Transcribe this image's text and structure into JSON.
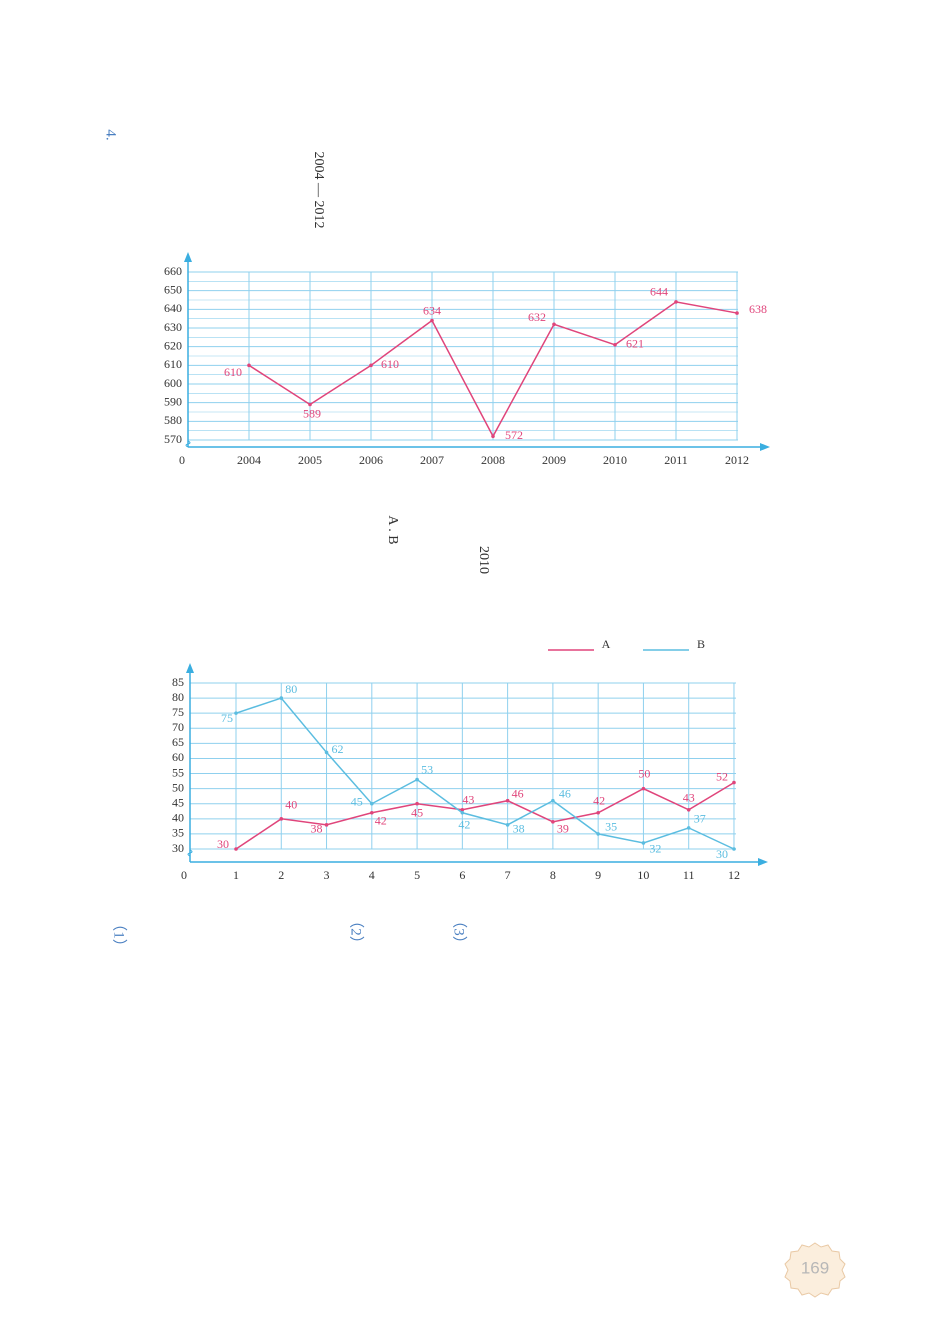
{
  "page": {
    "problem_number": "4.",
    "year_range": "2004 — 2012",
    "sub_items": [
      "（1）",
      "（2）",
      "（3）"
    ],
    "inline_a_b": "A . B",
    "inline_year": "2010",
    "page_number": "169"
  },
  "chart_data": [
    {
      "type": "line",
      "origin_label": "0",
      "categories": [
        "2004",
        "2005",
        "2006",
        "2007",
        "2008",
        "2009",
        "2010",
        "2011",
        "2012"
      ],
      "series": [
        {
          "color": "#e0457b",
          "values": [
            610,
            589,
            610,
            634,
            572,
            632,
            621,
            644,
            638
          ]
        }
      ],
      "ylim": [
        570,
        660
      ],
      "yticks": [
        570,
        580,
        590,
        600,
        610,
        620,
        630,
        640,
        650,
        660
      ],
      "grid": true
    },
    {
      "type": "line",
      "origin_label": "0",
      "categories": [
        "1",
        "2",
        "3",
        "4",
        "5",
        "6",
        "7",
        "8",
        "9",
        "10",
        "11",
        "12"
      ],
      "series": [
        {
          "name": "A",
          "color": "#e0457b",
          "values": [
            30,
            40,
            38,
            42,
            45,
            43,
            46,
            39,
            42,
            50,
            43,
            52
          ]
        },
        {
          "name": "B",
          "color": "#5bbde0",
          "values": [
            75,
            80,
            62,
            45,
            53,
            42,
            38,
            46,
            35,
            32,
            37,
            30
          ]
        }
      ],
      "ylim": [
        30,
        85
      ],
      "yticks": [
        30,
        35,
        40,
        45,
        50,
        55,
        60,
        65,
        70,
        75,
        80,
        85
      ],
      "grid": true,
      "legend": "top-right"
    }
  ]
}
